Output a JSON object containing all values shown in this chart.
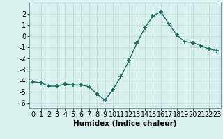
{
  "x": [
    0,
    1,
    2,
    3,
    4,
    5,
    6,
    7,
    8,
    9,
    10,
    11,
    12,
    13,
    14,
    15,
    16,
    17,
    18,
    19,
    20,
    21,
    22,
    23
  ],
  "y": [
    -4.1,
    -4.2,
    -4.5,
    -4.5,
    -4.3,
    -4.4,
    -4.4,
    -4.55,
    -5.2,
    -5.75,
    -4.8,
    -3.65,
    -2.2,
    -0.65,
    0.75,
    1.8,
    2.2,
    1.1,
    0.1,
    -0.5,
    -0.6,
    -0.85,
    -1.15,
    -1.3
  ],
  "line_color": "#1a6b5a",
  "marker": "+",
  "marker_size": 4,
  "marker_linewidth": 1.2,
  "bg_color": "#d8f0ef",
  "grid_color": "#c0dbd8",
  "xlabel": "Humidex (Indice chaleur)",
  "xlim": [
    -0.5,
    23.5
  ],
  "ylim": [
    -6.5,
    3.0
  ],
  "yticks": [
    -6,
    -5,
    -4,
    -3,
    -2,
    -1,
    0,
    1,
    2
  ],
  "xticks": [
    0,
    1,
    2,
    3,
    4,
    5,
    6,
    7,
    8,
    9,
    10,
    11,
    12,
    13,
    14,
    15,
    16,
    17,
    18,
    19,
    20,
    21,
    22,
    23
  ],
  "xlabel_fontsize": 7.5,
  "tick_fontsize": 7,
  "linewidth": 1.0
}
